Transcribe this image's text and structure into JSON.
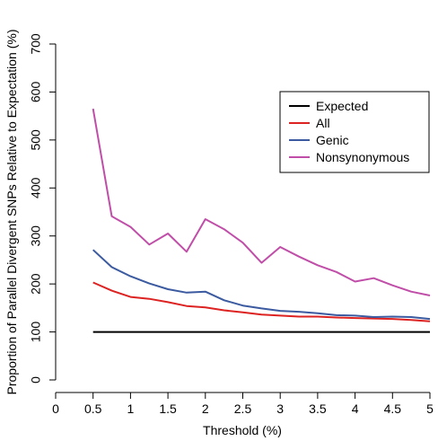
{
  "chart_data": {
    "type": "line",
    "xlabel": "Threshold (%)",
    "ylabel": "Proportion of Parallel Divergent SNPs Relative to Expectation (%)",
    "xlim": [
      0,
      5
    ],
    "ylim": [
      0,
      700
    ],
    "xticks": [
      0,
      0.5,
      1,
      1.5,
      2,
      2.5,
      3,
      3.5,
      4,
      4.5,
      5
    ],
    "xtick_labels": [
      "0",
      "0.5",
      "1",
      "1.5",
      "2",
      "2.5",
      "3",
      "3.5",
      "4",
      "4.5",
      "5"
    ],
    "yticks": [
      0,
      100,
      200,
      300,
      400,
      500,
      600,
      700
    ],
    "ytick_labels": [
      "0",
      "100",
      "200",
      "300",
      "400",
      "500",
      "600",
      "700"
    ],
    "grid": false,
    "legend_position": "top-right",
    "x": [
      0.5,
      0.75,
      1,
      1.25,
      1.5,
      1.75,
      2,
      2.25,
      2.5,
      2.75,
      3,
      3.25,
      3.5,
      3.75,
      4,
      4.25,
      4.5,
      4.75,
      5
    ],
    "series": [
      {
        "name": "Expected",
        "color": "#000000",
        "values": [
          100,
          100,
          100,
          100,
          100,
          100,
          100,
          100,
          100,
          100,
          100,
          100,
          100,
          100,
          100,
          100,
          100,
          100,
          100
        ]
      },
      {
        "name": "All",
        "color": "#dd2222",
        "values": [
          203,
          186,
          173,
          169,
          162,
          154,
          151,
          145,
          141,
          136,
          134,
          132,
          132,
          130,
          129,
          128,
          127,
          125,
          122
        ]
      },
      {
        "name": "Genic",
        "color": "#3b5aa0",
        "values": [
          271,
          235,
          216,
          201,
          189,
          182,
          184,
          166,
          155,
          149,
          144,
          142,
          139,
          135,
          134,
          131,
          132,
          131,
          127
        ]
      },
      {
        "name": "Nonsynonymous",
        "color": "#c04ea8",
        "values": [
          565,
          341,
          319,
          282,
          305,
          267,
          335,
          314,
          286,
          244,
          277,
          257,
          239,
          225,
          205,
          212,
          197,
          184,
          176
        ]
      }
    ]
  }
}
